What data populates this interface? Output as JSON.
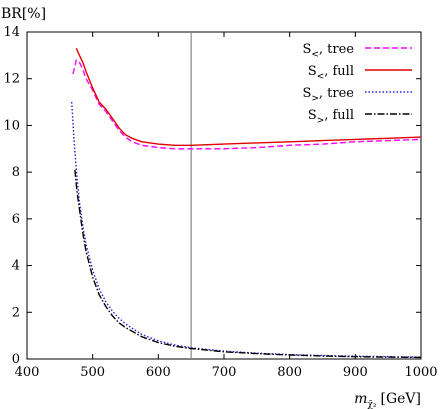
{
  "chart_data": {
    "type": "line",
    "ylabel": "BR[%]",
    "xlabel": "m",
    "xlabel_sub": "χ̃₂",
    "xlabel_unit": "[GeV]",
    "xlim": [
      400,
      1000
    ],
    "ylim": [
      0,
      14
    ],
    "xticks": [
      400,
      500,
      600,
      700,
      800,
      900,
      1000
    ],
    "yticks": [
      0,
      2,
      4,
      6,
      8,
      10,
      12,
      14
    ],
    "grid": false,
    "legend_position": "top-right",
    "vertical_line_x": 650,
    "series": [
      {
        "name": "S<, tree",
        "legend_main": "S",
        "legend_sub": "<",
        "legend_rest": ", tree",
        "color": "#ff00ff",
        "dash": "6,3",
        "x": [
          470,
          475,
          480,
          485,
          490,
          500,
          510,
          520,
          530,
          540,
          550,
          560,
          575,
          600,
          625,
          650,
          700,
          750,
          800,
          850,
          900,
          950,
          1000
        ],
        "y": [
          12.2,
          12.8,
          12.7,
          12.4,
          12.0,
          11.5,
          10.9,
          10.6,
          10.2,
          9.8,
          9.5,
          9.3,
          9.15,
          9.05,
          9.0,
          9.0,
          9.0,
          9.05,
          9.15,
          9.2,
          9.3,
          9.35,
          9.4
        ]
      },
      {
        "name": "S<, full",
        "legend_main": "S",
        "legend_sub": "<",
        "legend_rest": ", full",
        "color": "#e00000",
        "dash": "",
        "x": [
          475,
          480,
          485,
          490,
          500,
          510,
          520,
          530,
          540,
          550,
          560,
          575,
          600,
          625,
          650,
          700,
          750,
          800,
          850,
          900,
          950,
          1000
        ],
        "y": [
          13.3,
          13.0,
          12.7,
          12.3,
          11.6,
          11.0,
          10.7,
          10.3,
          9.9,
          9.6,
          9.45,
          9.3,
          9.2,
          9.15,
          9.15,
          9.2,
          9.25,
          9.3,
          9.35,
          9.4,
          9.45,
          9.5
        ]
      },
      {
        "name": "S>, tree",
        "legend_main": "S",
        "legend_sub": ">",
        "legend_rest": ", tree",
        "color": "#2020d0",
        "dash": "1.5,2",
        "x": [
          468,
          472,
          476,
          480,
          485,
          490,
          500,
          510,
          520,
          530,
          540,
          550,
          575,
          600,
          625,
          650,
          700,
          750,
          800,
          850,
          900,
          950,
          1000
        ],
        "y": [
          11.0,
          9.2,
          7.8,
          6.7,
          5.7,
          4.9,
          3.8,
          3.0,
          2.45,
          2.05,
          1.75,
          1.5,
          1.05,
          0.78,
          0.6,
          0.48,
          0.34,
          0.25,
          0.19,
          0.15,
          0.12,
          0.1,
          0.08
        ]
      },
      {
        "name": "S>, full",
        "legend_main": "S",
        "legend_sub": ">",
        "legend_rest": ", full",
        "color": "#000000",
        "dash": "7,2,1.5,2",
        "x": [
          473,
          476,
          480,
          485,
          490,
          500,
          510,
          520,
          530,
          540,
          550,
          575,
          600,
          625,
          650,
          700,
          750,
          800,
          850,
          900,
          950,
          1000
        ],
        "y": [
          8.1,
          7.2,
          6.4,
          5.4,
          4.6,
          3.5,
          2.75,
          2.25,
          1.85,
          1.55,
          1.35,
          0.95,
          0.7,
          0.55,
          0.45,
          0.31,
          0.23,
          0.17,
          0.13,
          0.1,
          0.08,
          0.07
        ]
      }
    ]
  }
}
